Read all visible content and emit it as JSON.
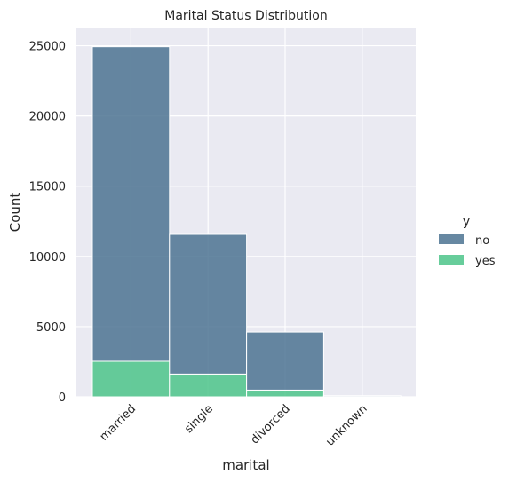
{
  "chart_data": {
    "type": "bar",
    "stacked": true,
    "title": "Marital Status Distribution",
    "xlabel": "marital",
    "ylabel": "Count",
    "categories": [
      "married",
      "single",
      "divorced",
      "unknown"
    ],
    "series": [
      {
        "name": "no",
        "color": "#4c7392",
        "values": [
          22400,
          9950,
          4130,
          68
        ]
      },
      {
        "name": "yes",
        "color": "#4cc48a",
        "values": [
          2530,
          1620,
          480,
          12
        ]
      }
    ],
    "ylim": [
      0,
      26300
    ],
    "yticks": [
      0,
      5000,
      10000,
      15000,
      20000,
      25000
    ],
    "grid": true,
    "legend": {
      "title": "y",
      "placement": "right",
      "entries": [
        "no",
        "yes"
      ]
    }
  }
}
